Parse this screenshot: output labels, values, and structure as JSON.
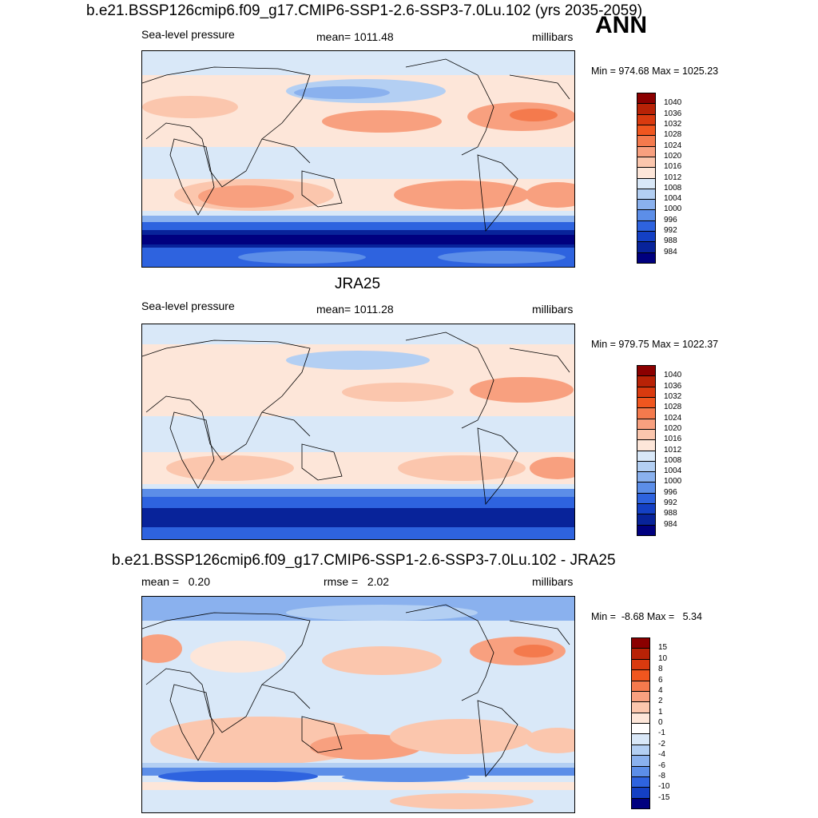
{
  "header": {
    "main_title": "b.e21.BSSP126cmip6.f09_g17.CMIP6-SSP1-2.6-SSP3-7.0Lu.102 (yrs 2035-2059)",
    "season": "ANN"
  },
  "panels": [
    {
      "title": "",
      "left": "Sea-level pressure",
      "center": "mean= 1011.48",
      "right": "millibars",
      "minmax": "Min = 974.68 Max = 1025.23",
      "colorbar_labels": [
        "1040",
        "1036",
        "1032",
        "1028",
        "1024",
        "1020",
        "1016",
        "1012",
        "1008",
        "1004",
        "1000",
        "996",
        "992",
        "988",
        "984"
      ]
    },
    {
      "title": "JRA25",
      "left": "Sea-level pressure",
      "center": "mean= 1011.28",
      "right": "millibars",
      "minmax": "Min = 979.75 Max = 1022.37",
      "colorbar_labels": [
        "1040",
        "1036",
        "1032",
        "1028",
        "1024",
        "1020",
        "1016",
        "1012",
        "1008",
        "1004",
        "1000",
        "996",
        "992",
        "988",
        "984"
      ]
    },
    {
      "title": "b.e21.BSSP126cmip6.f09_g17.CMIP6-SSP1-2.6-SSP3-7.0Lu.102 - JRA25",
      "left": "mean =   0.20",
      "center": "rmse =   2.02",
      "right": "millibars",
      "minmax": "Min =  -8.68 Max =   5.34",
      "colorbar_labels": [
        "15",
        "10",
        "8",
        "6",
        "4",
        "2",
        "1",
        "0",
        "-1",
        "-2",
        "-4",
        "-6",
        "-8",
        "-10",
        "-15"
      ]
    }
  ],
  "colors": {
    "abs_scale": [
      "#8b0000",
      "#b82206",
      "#d93a0f",
      "#f0561f",
      "#f47a4d",
      "#f8a07f",
      "#fbc6ad",
      "#fde6d9",
      "#d9e8f8",
      "#b3cff3",
      "#8ab1ee",
      "#5c8ee8",
      "#2e63df",
      "#1440c4",
      "#08239a",
      "#00007f"
    ],
    "diff_scale": [
      "#8b0000",
      "#b82206",
      "#d93a0f",
      "#f0561f",
      "#f47a4d",
      "#f8a07f",
      "#fbc6ad",
      "#fde6d9",
      "#ffffff",
      "#d9e8f8",
      "#b3cff3",
      "#8ab1ee",
      "#5c8ee8",
      "#2e63df",
      "#1440c4",
      "#00007f"
    ],
    "land_outline": "#000000"
  }
}
